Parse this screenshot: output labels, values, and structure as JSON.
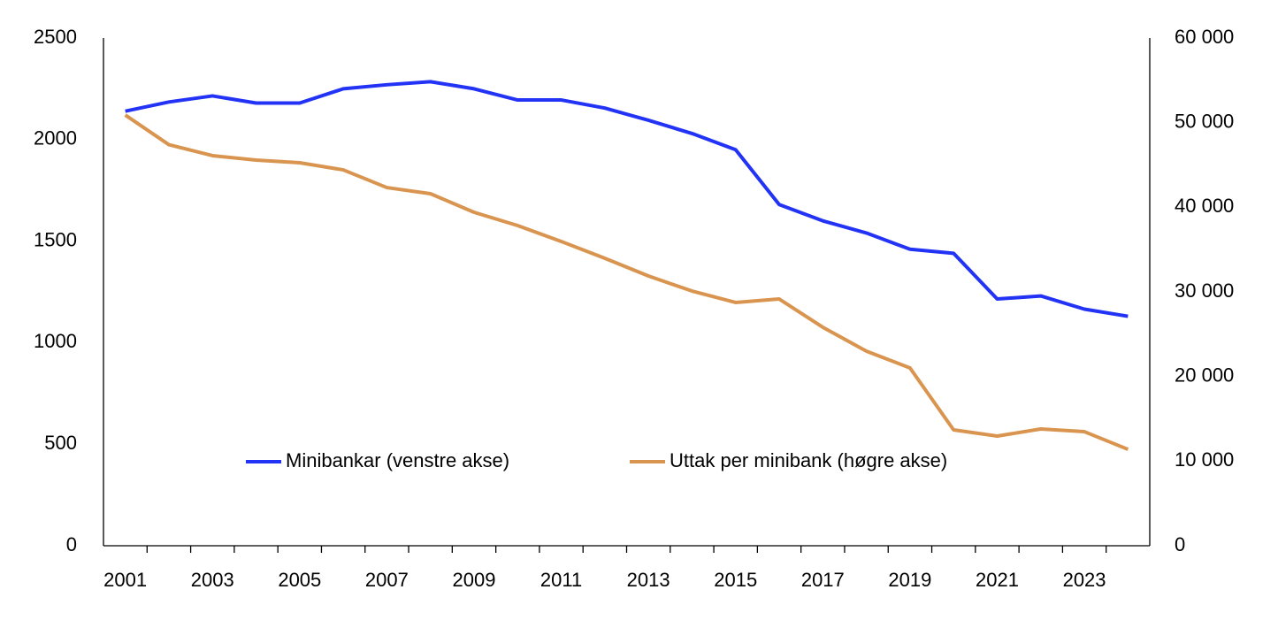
{
  "chart_data": {
    "type": "line",
    "x": [
      "2001",
      null,
      "2003",
      null,
      "2005",
      null,
      "2007",
      null,
      "2009",
      null,
      "2011",
      null,
      "2013",
      null,
      "2015",
      null,
      "2017",
      null,
      "2019",
      null,
      "2021",
      null,
      "2023",
      null
    ],
    "series": [
      {
        "name": "Minibankar (venstre akse)",
        "color": "#2233f5",
        "axis": "y",
        "values": [
          2140,
          2185,
          2215,
          2180,
          2180,
          2250,
          2270,
          2285,
          2250,
          2195,
          2195,
          2155,
          2095,
          2030,
          1950,
          1680,
          1600,
          1540,
          1460,
          1440,
          1215,
          1230,
          1165,
          1130
        ]
      },
      {
        "name": "Uttak per minibank (høgre akse)",
        "color": "#d9954f",
        "axis": "y2",
        "values": [
          50900,
          47400,
          46100,
          45570,
          45260,
          44420,
          42330,
          41600,
          39410,
          37840,
          35960,
          33970,
          31880,
          30100,
          28750,
          29160,
          25820,
          23000,
          21010,
          13690,
          12960,
          13800,
          13480,
          11390
        ]
      }
    ],
    "ylim": [
      0,
      2500
    ],
    "yticks": [
      0,
      500,
      1000,
      1500,
      2000,
      2500
    ],
    "y2lim": [
      0,
      60000
    ],
    "y2ticks": [
      {
        "value": 0,
        "label": "0"
      },
      {
        "value": 10000,
        "label": "10 000"
      },
      {
        "value": 20000,
        "label": "20 000"
      },
      {
        "value": 30000,
        "label": "30 000"
      },
      {
        "value": 40000,
        "label": "40 000"
      },
      {
        "value": 50000,
        "label": "50 000"
      },
      {
        "value": 60000,
        "label": "60 000"
      }
    ],
    "grid": false,
    "legend": "lower center"
  }
}
